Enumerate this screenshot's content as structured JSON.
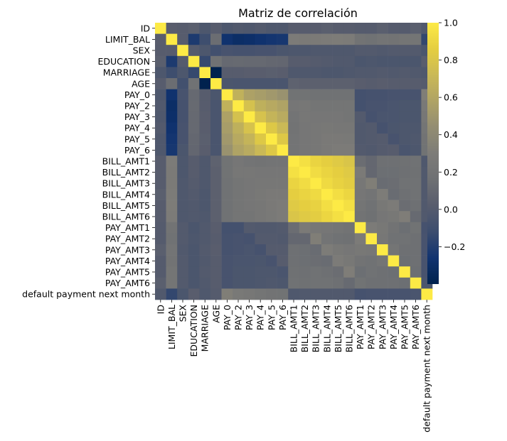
{
  "chart_data": {
    "type": "heatmap",
    "title": "Matriz de correlación",
    "xlabel": "",
    "ylabel": "",
    "labels": [
      "ID",
      "LIMIT_BAL",
      "SEX",
      "EDUCATION",
      "MARRIAGE",
      "AGE",
      "PAY_0",
      "PAY_2",
      "PAY_3",
      "PAY_4",
      "PAY_5",
      "PAY_6",
      "BILL_AMT1",
      "BILL_AMT2",
      "BILL_AMT3",
      "BILL_AMT4",
      "BILL_AMT5",
      "BILL_AMT6",
      "PAY_AMT1",
      "PAY_AMT2",
      "PAY_AMT3",
      "PAY_AMT4",
      "PAY_AMT5",
      "PAY_AMT6",
      "default payment next month"
    ],
    "colormap": "cividis",
    "vmin": -0.4,
    "vmax": 1.0,
    "colorbar_ticks": [
      -0.2,
      0.0,
      0.2,
      0.4,
      0.6,
      0.8,
      1.0
    ],
    "matrix": [
      [
        1.0,
        0.03,
        0.02,
        0.04,
        -0.03,
        0.02,
        -0.03,
        -0.01,
        -0.02,
        -0.0,
        -0.02,
        -0.02,
        0.02,
        0.02,
        0.02,
        0.04,
        0.02,
        0.02,
        0.01,
        0.01,
        0.04,
        0.01,
        0.01,
        0.04,
        -0.01
      ],
      [
        0.03,
        1.0,
        0.02,
        -0.22,
        -0.11,
        0.14,
        -0.27,
        -0.3,
        -0.29,
        -0.27,
        -0.25,
        -0.24,
        0.29,
        0.28,
        0.28,
        0.29,
        0.3,
        0.29,
        0.2,
        0.18,
        0.21,
        0.2,
        0.22,
        0.22,
        -0.15
      ],
      [
        0.02,
        0.02,
        1.0,
        0.01,
        -0.03,
        -0.09,
        -0.06,
        -0.07,
        -0.07,
        -0.06,
        -0.06,
        -0.04,
        -0.03,
        -0.03,
        -0.02,
        -0.02,
        -0.02,
        -0.02,
        -0.0,
        -0.0,
        -0.01,
        -0.0,
        -0.0,
        -0.0,
        -0.04
      ],
      [
        0.04,
        -0.22,
        0.01,
        1.0,
        -0.14,
        0.18,
        0.11,
        0.12,
        0.11,
        0.11,
        0.1,
        0.09,
        0.02,
        0.02,
        0.01,
        -0.0,
        -0.01,
        -0.01,
        -0.04,
        -0.03,
        -0.04,
        -0.04,
        -0.04,
        -0.04,
        0.03
      ],
      [
        -0.03,
        -0.11,
        -0.03,
        -0.14,
        1.0,
        -0.41,
        0.02,
        0.02,
        0.03,
        0.03,
        0.04,
        0.03,
        -0.02,
        -0.02,
        -0.02,
        -0.03,
        -0.03,
        -0.02,
        -0.01,
        -0.01,
        -0.0,
        -0.01,
        -0.0,
        -0.01,
        -0.02
      ],
      [
        0.02,
        0.14,
        -0.09,
        0.18,
        -0.41,
        1.0,
        -0.04,
        -0.05,
        -0.05,
        -0.05,
        -0.05,
        -0.05,
        0.06,
        0.05,
        0.05,
        0.05,
        0.05,
        0.05,
        0.03,
        0.02,
        0.03,
        0.02,
        0.02,
        0.02,
        0.01
      ],
      [
        -0.03,
        -0.27,
        -0.06,
        0.11,
        0.02,
        -0.04,
        1.0,
        0.67,
        0.57,
        0.54,
        0.51,
        0.47,
        0.19,
        0.19,
        0.18,
        0.18,
        0.18,
        0.18,
        -0.08,
        -0.07,
        -0.07,
        -0.06,
        -0.06,
        -0.06,
        0.32
      ],
      [
        -0.01,
        -0.3,
        -0.07,
        0.12,
        0.02,
        -0.05,
        0.67,
        1.0,
        0.77,
        0.66,
        0.62,
        0.58,
        0.23,
        0.24,
        0.22,
        0.22,
        0.22,
        0.22,
        -0.08,
        -0.06,
        -0.06,
        -0.05,
        -0.04,
        -0.04,
        0.26
      ],
      [
        -0.02,
        -0.29,
        -0.07,
        0.11,
        0.03,
        -0.05,
        0.57,
        0.77,
        1.0,
        0.78,
        0.69,
        0.63,
        0.21,
        0.24,
        0.23,
        0.23,
        0.23,
        0.22,
        0.0,
        -0.07,
        -0.05,
        -0.05,
        -0.04,
        -0.04,
        0.24
      ],
      [
        -0.0,
        -0.27,
        -0.06,
        0.11,
        0.03,
        -0.05,
        0.54,
        0.66,
        0.78,
        1.0,
        0.82,
        0.72,
        0.2,
        0.23,
        0.24,
        0.25,
        0.24,
        0.24,
        -0.01,
        -0.0,
        -0.07,
        -0.04,
        -0.03,
        -0.03,
        0.22
      ],
      [
        -0.02,
        -0.25,
        -0.06,
        0.1,
        0.04,
        -0.05,
        0.51,
        0.62,
        0.69,
        0.82,
        1.0,
        0.82,
        0.21,
        0.23,
        0.24,
        0.27,
        0.27,
        0.26,
        -0.01,
        -0.0,
        0.01,
        -0.06,
        -0.03,
        -0.02,
        0.2
      ],
      [
        -0.02,
        -0.24,
        -0.04,
        0.09,
        0.03,
        -0.05,
        0.47,
        0.58,
        0.63,
        0.72,
        0.82,
        1.0,
        0.21,
        0.23,
        0.24,
        0.27,
        0.29,
        0.29,
        -0.0,
        -0.01,
        0.01,
        0.02,
        -0.05,
        -0.03,
        0.19
      ],
      [
        0.02,
        0.29,
        -0.03,
        0.02,
        -0.02,
        0.06,
        0.19,
        0.23,
        0.21,
        0.2,
        0.21,
        0.21,
        1.0,
        0.95,
        0.89,
        0.86,
        0.83,
        0.8,
        0.14,
        0.1,
        0.16,
        0.16,
        0.17,
        0.18,
        -0.02
      ],
      [
        0.02,
        0.28,
        -0.03,
        0.02,
        -0.02,
        0.05,
        0.19,
        0.24,
        0.24,
        0.23,
        0.23,
        0.23,
        0.95,
        1.0,
        0.93,
        0.89,
        0.86,
        0.83,
        0.28,
        0.1,
        0.15,
        0.15,
        0.16,
        0.17,
        -0.01
      ],
      [
        0.02,
        0.28,
        -0.02,
        0.01,
        -0.02,
        0.05,
        0.18,
        0.22,
        0.23,
        0.24,
        0.24,
        0.24,
        0.89,
        0.93,
        1.0,
        0.92,
        0.88,
        0.85,
        0.24,
        0.32,
        0.13,
        0.14,
        0.18,
        0.18,
        -0.01
      ],
      [
        0.04,
        0.29,
        -0.02,
        -0.0,
        -0.03,
        0.05,
        0.18,
        0.22,
        0.23,
        0.25,
        0.27,
        0.27,
        0.86,
        0.89,
        0.92,
        1.0,
        0.94,
        0.9,
        0.23,
        0.21,
        0.3,
        0.13,
        0.16,
        0.18,
        -0.01
      ],
      [
        0.02,
        0.3,
        -0.02,
        -0.01,
        -0.03,
        0.05,
        0.18,
        0.22,
        0.23,
        0.24,
        0.27,
        0.29,
        0.83,
        0.86,
        0.88,
        0.94,
        1.0,
        0.95,
        0.22,
        0.18,
        0.25,
        0.29,
        0.14,
        0.16,
        -0.01
      ],
      [
        0.02,
        0.29,
        -0.02,
        -0.01,
        -0.02,
        0.05,
        0.18,
        0.22,
        0.22,
        0.24,
        0.26,
        0.29,
        0.8,
        0.83,
        0.85,
        0.9,
        0.95,
        1.0,
        0.2,
        0.17,
        0.23,
        0.25,
        0.31,
        0.12,
        -0.01
      ],
      [
        0.01,
        0.2,
        -0.0,
        -0.04,
        -0.01,
        0.03,
        -0.08,
        -0.08,
        0.0,
        -0.01,
        -0.01,
        -0.0,
        0.14,
        0.28,
        0.24,
        0.23,
        0.22,
        0.2,
        1.0,
        0.29,
        0.25,
        0.2,
        0.15,
        0.19,
        -0.07
      ],
      [
        0.01,
        0.18,
        -0.0,
        -0.03,
        -0.01,
        0.02,
        -0.07,
        -0.06,
        -0.07,
        -0.0,
        -0.0,
        -0.01,
        0.1,
        0.1,
        0.32,
        0.21,
        0.18,
        0.17,
        0.29,
        1.0,
        0.24,
        0.18,
        0.18,
        0.16,
        -0.06
      ],
      [
        0.04,
        0.21,
        -0.01,
        -0.04,
        -0.0,
        0.03,
        -0.07,
        -0.06,
        -0.05,
        -0.07,
        0.01,
        0.01,
        0.16,
        0.15,
        0.13,
        0.3,
        0.25,
        0.23,
        0.25,
        0.24,
        1.0,
        0.22,
        0.16,
        0.16,
        -0.06
      ],
      [
        0.01,
        0.2,
        -0.0,
        -0.04,
        -0.01,
        0.02,
        -0.06,
        -0.05,
        -0.05,
        -0.04,
        -0.06,
        0.02,
        0.16,
        0.15,
        0.14,
        0.13,
        0.29,
        0.25,
        0.2,
        0.18,
        0.22,
        1.0,
        0.15,
        0.16,
        -0.06
      ],
      [
        0.01,
        0.22,
        -0.0,
        -0.04,
        -0.0,
        0.02,
        -0.06,
        -0.04,
        -0.04,
        -0.03,
        -0.03,
        -0.05,
        0.17,
        0.16,
        0.18,
        0.16,
        0.14,
        0.31,
        0.15,
        0.18,
        0.16,
        0.15,
        1.0,
        0.15,
        -0.06
      ],
      [
        0.04,
        0.22,
        -0.0,
        -0.04,
        -0.01,
        0.02,
        -0.06,
        -0.04,
        -0.04,
        -0.03,
        -0.02,
        -0.03,
        0.18,
        0.17,
        0.18,
        0.18,
        0.16,
        0.12,
        0.19,
        0.16,
        0.16,
        0.16,
        0.15,
        1.0,
        -0.05
      ],
      [
        -0.01,
        -0.15,
        -0.04,
        0.03,
        -0.02,
        0.01,
        0.32,
        0.26,
        0.24,
        0.22,
        0.2,
        0.19,
        -0.02,
        -0.01,
        -0.01,
        -0.01,
        -0.01,
        -0.01,
        -0.07,
        -0.06,
        -0.06,
        -0.06,
        -0.06,
        -0.05,
        1.0
      ]
    ]
  }
}
